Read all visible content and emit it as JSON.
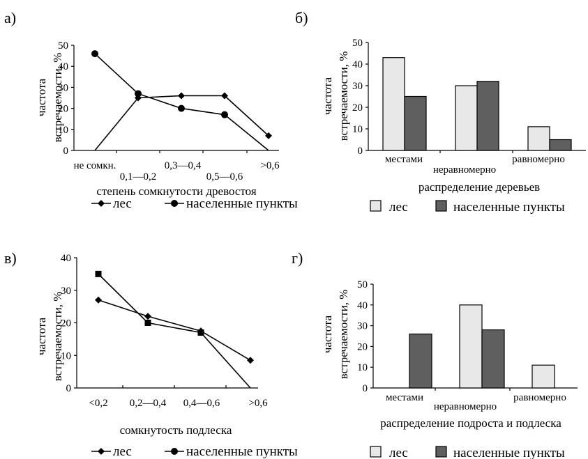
{
  "chart_data": [
    {
      "panel": "а)",
      "type": "line",
      "categories": [
        "не сомкн.",
        "0,1—0,2",
        "0,3—0,4",
        "0,5—0,6",
        ">0,6"
      ],
      "series": [
        {
          "name": "лес",
          "values": [
            0,
            25,
            26,
            26,
            7
          ],
          "marker": "diamond"
        },
        {
          "name": "населенные пункты",
          "values": [
            46,
            27,
            20,
            17,
            0
          ],
          "marker": "circle"
        }
      ],
      "ylabel": [
        "частота",
        "встречаемости, %"
      ],
      "xlabel": "степень сомкнутости древостоя",
      "ylim": [
        0,
        50
      ],
      "yticks": [
        0,
        10,
        20,
        30,
        40,
        50
      ],
      "legend_position": "bottom"
    },
    {
      "panel": "б)",
      "type": "bar",
      "categories": [
        "местами",
        "неравномерно",
        "равномерно"
      ],
      "series": [
        {
          "name": "лес",
          "values": [
            43,
            30,
            11
          ],
          "color": "#e8e8e8"
        },
        {
          "name": "населенные пункты",
          "values": [
            25,
            32,
            5
          ],
          "color": "#5f5f5f"
        }
      ],
      "ylabel": [
        "частота",
        "встречаемости, %"
      ],
      "xlabel": "распределение деревьев",
      "ylim": [
        0,
        50
      ],
      "yticks": [
        0,
        10,
        20,
        30,
        40,
        50
      ],
      "legend_position": "bottom"
    },
    {
      "panel": "в)",
      "type": "line",
      "categories": [
        "<0,2",
        "0,2—0,4",
        "0,4—0,6",
        ">0,6"
      ],
      "series": [
        {
          "name": "лес",
          "values": [
            27,
            22,
            17.5,
            8.5
          ],
          "marker": "diamond"
        },
        {
          "name": "населенные пункты",
          "values": [
            35,
            20,
            17,
            0
          ],
          "marker": "square"
        }
      ],
      "ylabel": [
        "частота",
        "встречаемости, %"
      ],
      "xlabel": "сомкнутость подлеска",
      "ylim": [
        0,
        40
      ],
      "yticks": [
        0,
        10,
        20,
        30,
        40
      ],
      "legend_position": "bottom"
    },
    {
      "panel": "г)",
      "type": "bar",
      "categories": [
        "местами",
        "неравномерно",
        "равномерно"
      ],
      "series": [
        {
          "name": "лес",
          "values": [
            0,
            40,
            11
          ],
          "color": "#e8e8e8"
        },
        {
          "name": "населенные пункты",
          "values": [
            26,
            28,
            0
          ],
          "color": "#5f5f5f"
        }
      ],
      "ylabel": [
        "частота",
        "встречаемости, %"
      ],
      "xlabel": "распределение подроста и подлеска",
      "ylim": [
        0,
        50
      ],
      "yticks": [
        0,
        10,
        20,
        30,
        40,
        50
      ],
      "legend_position": "bottom"
    }
  ]
}
